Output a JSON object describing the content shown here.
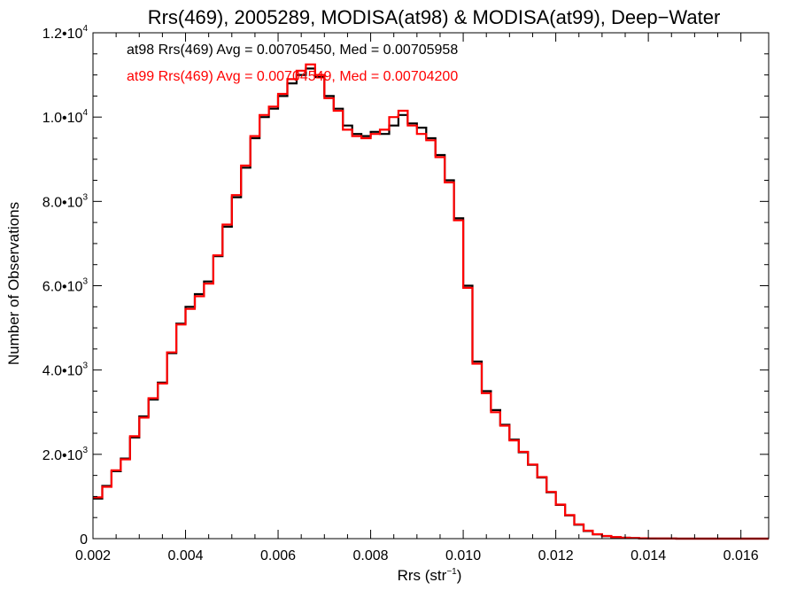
{
  "chart_data": {
    "type": "line",
    "step": true,
    "title": "Rrs(469), 2005289, MODISA(at98) & MODISA(at99), Deep−Water",
    "xlabel": {
      "base": "Rrs (str",
      "sup": "−1",
      "tail": ")"
    },
    "ylabel": "Number of Observations",
    "xlim": [
      0.002,
      0.0166
    ],
    "ylim": [
      0,
      12000
    ],
    "x_ticks": [
      {
        "value": 0.002,
        "label": "0.002"
      },
      {
        "value": 0.004,
        "label": "0.004"
      },
      {
        "value": 0.006,
        "label": "0.006"
      },
      {
        "value": 0.008,
        "label": "0.008"
      },
      {
        "value": 0.01,
        "label": "0.010"
      },
      {
        "value": 0.012,
        "label": "0.012"
      },
      {
        "value": 0.014,
        "label": "0.014"
      },
      {
        "value": 0.016,
        "label": "0.016"
      }
    ],
    "y_ticks": [
      {
        "value": 0,
        "mantissa": "0",
        "exp": ""
      },
      {
        "value": 2000,
        "mantissa": "2.0•10",
        "exp": "3"
      },
      {
        "value": 4000,
        "mantissa": "4.0•10",
        "exp": "3"
      },
      {
        "value": 6000,
        "mantissa": "6.0•10",
        "exp": "3"
      },
      {
        "value": 8000,
        "mantissa": "8.0•10",
        "exp": "3"
      },
      {
        "value": 10000,
        "mantissa": "1.0•10",
        "exp": "4"
      },
      {
        "value": 12000,
        "mantissa": "1.2•10",
        "exp": "4"
      }
    ],
    "grid": false,
    "annotations": [
      {
        "text": "at98 Rrs(469) Avg = 0.00705450, Med = 0.00705958",
        "color": "#000000"
      },
      {
        "text": "at99 Rrs(469) Avg = 0.00704549, Med = 0.00704200",
        "color": "#ff0000"
      }
    ],
    "series": [
      {
        "color": "#000000",
        "x": [
          0.002,
          0.0022,
          0.0024,
          0.0026,
          0.0028,
          0.003,
          0.0032,
          0.0034,
          0.0036,
          0.0038,
          0.004,
          0.0042,
          0.0044,
          0.0046,
          0.0048,
          0.005,
          0.0052,
          0.0054,
          0.0056,
          0.0058,
          0.006,
          0.0062,
          0.0064,
          0.0066,
          0.0068,
          0.007,
          0.0072,
          0.0074,
          0.0076,
          0.0078,
          0.008,
          0.0082,
          0.0084,
          0.0086,
          0.0088,
          0.009,
          0.0092,
          0.0094,
          0.0096,
          0.0098,
          0.01,
          0.0102,
          0.0104,
          0.0106,
          0.0108,
          0.011,
          0.0112,
          0.0114,
          0.0116,
          0.0118,
          0.012,
          0.0122,
          0.0124,
          0.0126,
          0.0128,
          0.013,
          0.0132,
          0.0134,
          0.0136,
          0.0138,
          0.014,
          0.0142,
          0.0144,
          0.0146,
          0.0148,
          0.015,
          0.0152,
          0.0154,
          0.0156,
          0.0158,
          0.016,
          0.0162,
          0.0164,
          0.0166
        ],
        "values": [
          950,
          1250,
          1600,
          1900,
          2400,
          2900,
          3300,
          3700,
          4400,
          5100,
          5500,
          5800,
          6100,
          6700,
          7400,
          8100,
          8800,
          9500,
          10000,
          10200,
          10500,
          10800,
          11000,
          11150,
          10950,
          10500,
          10200,
          9800,
          9600,
          9550,
          9650,
          9600,
          9800,
          10050,
          9850,
          9750,
          9500,
          9100,
          8500,
          7600,
          6000,
          4200,
          3500,
          3050,
          2700,
          2350,
          2050,
          1750,
          1450,
          1100,
          800,
          550,
          330,
          180,
          100,
          60,
          35,
          20,
          12,
          8,
          5,
          3,
          2,
          1,
          1,
          0,
          0,
          0,
          0,
          0,
          0,
          0,
          0,
          0
        ]
      },
      {
        "color": "#ff0000",
        "x": [
          0.002,
          0.0022,
          0.0024,
          0.0026,
          0.0028,
          0.003,
          0.0032,
          0.0034,
          0.0036,
          0.0038,
          0.004,
          0.0042,
          0.0044,
          0.0046,
          0.0048,
          0.005,
          0.0052,
          0.0054,
          0.0056,
          0.0058,
          0.006,
          0.0062,
          0.0064,
          0.0066,
          0.0068,
          0.007,
          0.0072,
          0.0074,
          0.0076,
          0.0078,
          0.008,
          0.0082,
          0.0084,
          0.0086,
          0.0088,
          0.009,
          0.0092,
          0.0094,
          0.0096,
          0.0098,
          0.01,
          0.0102,
          0.0104,
          0.0106,
          0.0108,
          0.011,
          0.0112,
          0.0114,
          0.0116,
          0.0118,
          0.012,
          0.0122,
          0.0124,
          0.0126,
          0.0128,
          0.013,
          0.0132,
          0.0134,
          0.0136,
          0.0138,
          0.014,
          0.0142,
          0.0144,
          0.0146,
          0.0148,
          0.015,
          0.0152,
          0.0154,
          0.0156,
          0.0158,
          0.016,
          0.0162,
          0.0164,
          0.0166
        ],
        "values": [
          980,
          1230,
          1620,
          1880,
          2430,
          2870,
          3330,
          3680,
          4420,
          5080,
          5450,
          5750,
          6050,
          6720,
          7450,
          8150,
          8850,
          9550,
          10050,
          10250,
          10550,
          10900,
          11100,
          11250,
          11000,
          10450,
          10150,
          9700,
          9550,
          9500,
          9600,
          9700,
          10000,
          10150,
          9800,
          9600,
          9450,
          9050,
          8450,
          7550,
          5950,
          4150,
          3450,
          3000,
          2680,
          2330,
          2060,
          1760,
          1460,
          1110,
          810,
          560,
          340,
          190,
          105,
          62,
          37,
          21,
          12,
          8,
          5,
          3,
          2,
          1,
          1,
          0,
          0,
          0,
          0,
          0,
          0,
          0,
          0,
          0
        ]
      }
    ]
  }
}
